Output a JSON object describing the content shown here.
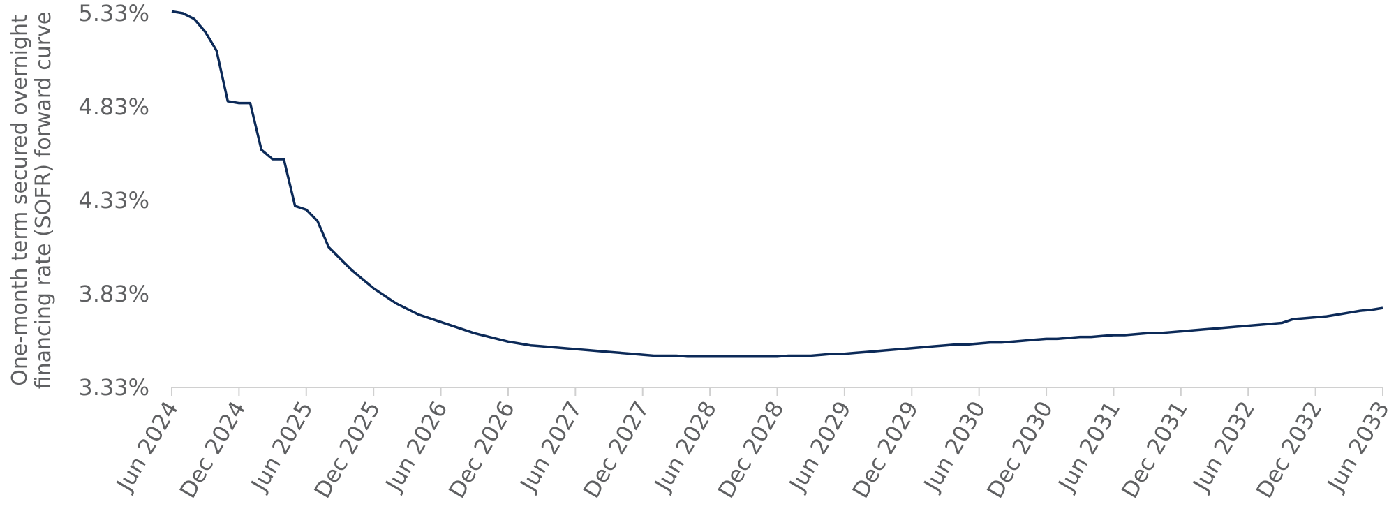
{
  "chart_data": {
    "type": "line",
    "y_label": [
      "One-month term secured overnight",
      "financing rate (SOFR) forward curve"
    ],
    "categories": [
      "Jun 2024",
      null,
      null,
      null,
      null,
      null,
      "Dec 2024",
      null,
      null,
      null,
      null,
      null,
      "Jun 2025",
      null,
      null,
      null,
      null,
      null,
      "Dec 2025",
      null,
      null,
      null,
      null,
      null,
      "Jun 2026",
      null,
      null,
      null,
      null,
      null,
      "Dec 2026",
      null,
      null,
      null,
      null,
      null,
      "Jun 2027",
      null,
      null,
      null,
      null,
      null,
      "Dec 2027",
      null,
      null,
      null,
      null,
      null,
      "Jun 2028",
      null,
      null,
      null,
      null,
      null,
      "Dec 2028",
      null,
      null,
      null,
      null,
      null,
      "Jun 2029",
      null,
      null,
      null,
      null,
      null,
      "Dec 2029",
      null,
      null,
      null,
      null,
      null,
      "Jun 2030",
      null,
      null,
      null,
      null,
      null,
      "Dec 2030",
      null,
      null,
      null,
      null,
      null,
      "Jun 2031",
      null,
      null,
      null,
      null,
      null,
      "Dec 2031",
      null,
      null,
      null,
      null,
      null,
      "Jun 2032",
      null,
      null,
      null,
      null,
      null,
      "Dec 2032",
      null,
      null,
      null,
      null,
      null,
      "Jun 2033"
    ],
    "values": [
      5.34,
      5.33,
      5.3,
      5.23,
      5.13,
      4.86,
      4.85,
      4.85,
      4.6,
      4.55,
      4.55,
      4.3,
      4.28,
      4.22,
      4.08,
      4.02,
      3.96,
      3.91,
      3.86,
      3.82,
      3.78,
      3.75,
      3.72,
      3.7,
      3.68,
      3.66,
      3.64,
      3.62,
      3.605,
      3.59,
      3.575,
      3.565,
      3.555,
      3.55,
      3.545,
      3.54,
      3.535,
      3.53,
      3.525,
      3.52,
      3.515,
      3.51,
      3.505,
      3.5,
      3.5,
      3.5,
      3.495,
      3.495,
      3.495,
      3.495,
      3.495,
      3.495,
      3.495,
      3.495,
      3.495,
      3.5,
      3.5,
      3.5,
      3.505,
      3.51,
      3.51,
      3.515,
      3.52,
      3.525,
      3.53,
      3.535,
      3.54,
      3.545,
      3.55,
      3.555,
      3.56,
      3.56,
      3.565,
      3.57,
      3.57,
      3.575,
      3.58,
      3.585,
      3.59,
      3.59,
      3.595,
      3.6,
      3.6,
      3.605,
      3.61,
      3.61,
      3.615,
      3.62,
      3.62,
      3.625,
      3.63,
      3.635,
      3.64,
      3.645,
      3.65,
      3.655,
      3.66,
      3.665,
      3.67,
      3.675,
      3.695,
      3.7,
      3.705,
      3.71,
      3.72,
      3.73,
      3.74,
      3.745,
      3.755
    ],
    "color": "#0c2a58",
    "ylim": [
      3.33,
      5.33
    ],
    "yticks": [
      {
        "value": 3.33,
        "label": "3.33%"
      },
      {
        "value": 3.83,
        "label": "3.83%"
      },
      {
        "value": 4.33,
        "label": "4.33%"
      },
      {
        "value": 4.83,
        "label": "4.83%"
      },
      {
        "value": 5.33,
        "label": "5.33%"
      }
    ],
    "grid": false
  }
}
